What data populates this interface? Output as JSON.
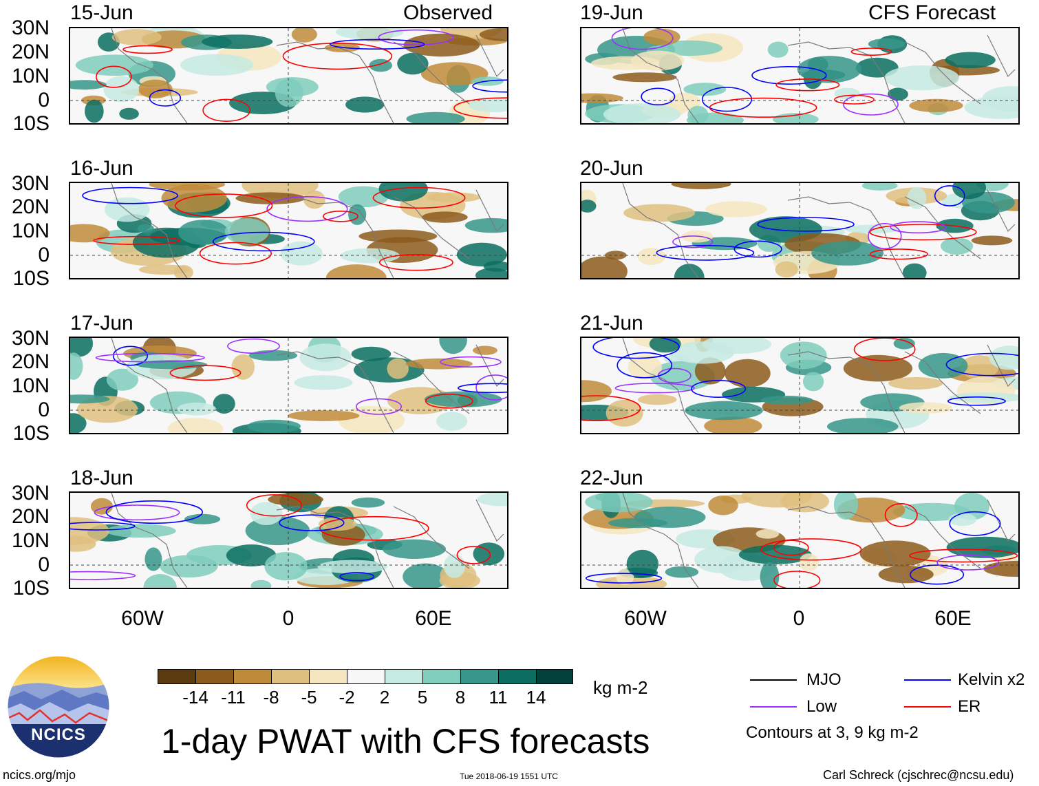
{
  "header": {
    "left_label": "Observed",
    "right_label": "CFS Forecast"
  },
  "panels": [
    {
      "date": "15-Jun",
      "column": "observed",
      "row": 0
    },
    {
      "date": "16-Jun",
      "column": "observed",
      "row": 1
    },
    {
      "date": "17-Jun",
      "column": "observed",
      "row": 2
    },
    {
      "date": "18-Jun",
      "column": "observed",
      "row": 3
    },
    {
      "date": "19-Jun",
      "column": "forecast",
      "row": 0
    },
    {
      "date": "20-Jun",
      "column": "forecast",
      "row": 1
    },
    {
      "date": "21-Jun",
      "column": "forecast",
      "row": 2
    },
    {
      "date": "22-Jun",
      "column": "forecast",
      "row": 3
    }
  ],
  "axes": {
    "lat_labels": [
      "30N",
      "20N",
      "10N",
      "0",
      "10S"
    ],
    "lon_labels": [
      "60W",
      "0",
      "60E"
    ]
  },
  "colorbar": {
    "unit": "kg m-2",
    "tick_labels": [
      "-14",
      "-11",
      "-8",
      "-5",
      "-2",
      "2",
      "5",
      "8",
      "11",
      "14"
    ],
    "colors": [
      "#5a3a0e",
      "#8c5a1c",
      "#bf8b3a",
      "#dfbf7f",
      "#f5e6c0",
      "#f7f7f7",
      "#c5eae3",
      "#7fcdbc",
      "#36978a",
      "#0b6e60",
      "#00413a"
    ]
  },
  "legend": {
    "items": [
      {
        "label": "MJO",
        "color": "#000000"
      },
      {
        "label": "Kelvin x2",
        "color": "#0000ff"
      },
      {
        "label": "Low",
        "color": "#9b30ff"
      },
      {
        "label": "ER",
        "color": "#ff0000"
      }
    ],
    "note": "Contours at 3, 9 kg m-2"
  },
  "title": "1-day PWAT with CFS forecasts",
  "logo_text": "NCICS",
  "footer": {
    "url": "ncics.org/mjo",
    "timestamp": "Tue 2018-06-19 1551 UTC",
    "author": "Carl Schreck (cjschrec@ncsu.edu)"
  }
}
